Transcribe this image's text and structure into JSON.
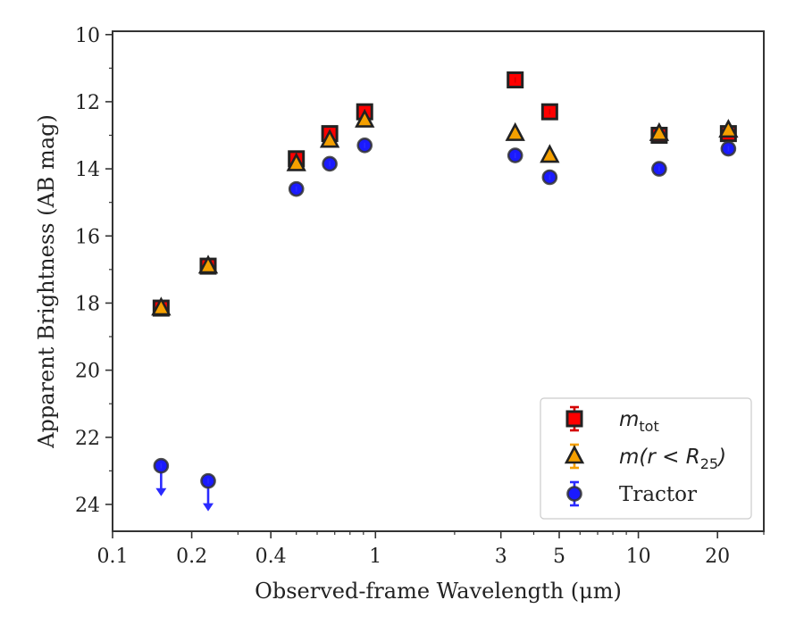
{
  "chart_data": {
    "type": "scatter",
    "title": "",
    "xlabel": "Observed-frame Wavelength (μm)",
    "ylabel": "Apparent Brightness (AB mag)",
    "xscale": "log",
    "xlim": [
      0.1,
      30
    ],
    "ylim": [
      24.8,
      9.9
    ],
    "y_inverted": true,
    "grid": false,
    "legend_position": "lower-right",
    "x_ticks": [
      {
        "value": 0.1,
        "label": "0.1"
      },
      {
        "value": 0.2,
        "label": "0.2"
      },
      {
        "value": 0.4,
        "label": "0.4"
      },
      {
        "value": 1,
        "label": "1"
      },
      {
        "value": 3,
        "label": "3"
      },
      {
        "value": 5,
        "label": "5"
      },
      {
        "value": 10,
        "label": "10"
      },
      {
        "value": 20,
        "label": "20"
      }
    ],
    "y_ticks": [
      {
        "value": 10,
        "label": "10"
      },
      {
        "value": 12,
        "label": "12"
      },
      {
        "value": 14,
        "label": "14"
      },
      {
        "value": 16,
        "label": "16"
      },
      {
        "value": 18,
        "label": "18"
      },
      {
        "value": 20,
        "label": "20"
      },
      {
        "value": 22,
        "label": "22"
      },
      {
        "value": 24,
        "label": "24"
      }
    ],
    "series": [
      {
        "name": "m_tot",
        "legend_label": "m",
        "legend_subscript": "tot",
        "marker": "square",
        "color": "#ff0000",
        "edge_color": "#222222",
        "errorbar_color": "#d40000",
        "points": [
          {
            "x": 0.153,
            "y": 18.15
          },
          {
            "x": 0.231,
            "y": 16.9
          },
          {
            "x": 0.5,
            "y": 13.7
          },
          {
            "x": 0.67,
            "y": 12.95
          },
          {
            "x": 0.91,
            "y": 12.3
          },
          {
            "x": 3.4,
            "y": 11.35
          },
          {
            "x": 4.6,
            "y": 12.3
          },
          {
            "x": 12.0,
            "y": 13.0
          },
          {
            "x": 22.0,
            "y": 12.95
          }
        ]
      },
      {
        "name": "m(r < R_25)",
        "legend_label": "m(r < R",
        "legend_subscript": "25",
        "legend_suffix": ")",
        "marker": "triangle",
        "color": "#f5a000",
        "edge_color": "#222222",
        "errorbar_color": "#f5a000",
        "points": [
          {
            "x": 0.153,
            "y": 18.15
          },
          {
            "x": 0.231,
            "y": 16.9
          },
          {
            "x": 0.5,
            "y": 13.85
          },
          {
            "x": 0.67,
            "y": 13.15
          },
          {
            "x": 0.91,
            "y": 12.55
          },
          {
            "x": 3.4,
            "y": 12.95
          },
          {
            "x": 4.6,
            "y": 13.6
          },
          {
            "x": 12.0,
            "y": 12.95
          },
          {
            "x": 22.0,
            "y": 12.85
          }
        ]
      },
      {
        "name": "Tractor",
        "legend_label": "Tractor",
        "marker": "circle",
        "color": "#1a1aff",
        "edge_color": "#333333",
        "errorbar_color": "#2a2aff",
        "points": [
          {
            "x": 0.153,
            "y": 22.85,
            "upper_limit": true
          },
          {
            "x": 0.231,
            "y": 23.3,
            "upper_limit": true
          },
          {
            "x": 0.5,
            "y": 14.6
          },
          {
            "x": 0.67,
            "y": 13.85
          },
          {
            "x": 0.91,
            "y": 13.3
          },
          {
            "x": 3.4,
            "y": 13.6
          },
          {
            "x": 4.6,
            "y": 14.25
          },
          {
            "x": 12.0,
            "y": 14.0
          },
          {
            "x": 22.0,
            "y": 13.4
          }
        ]
      }
    ]
  }
}
